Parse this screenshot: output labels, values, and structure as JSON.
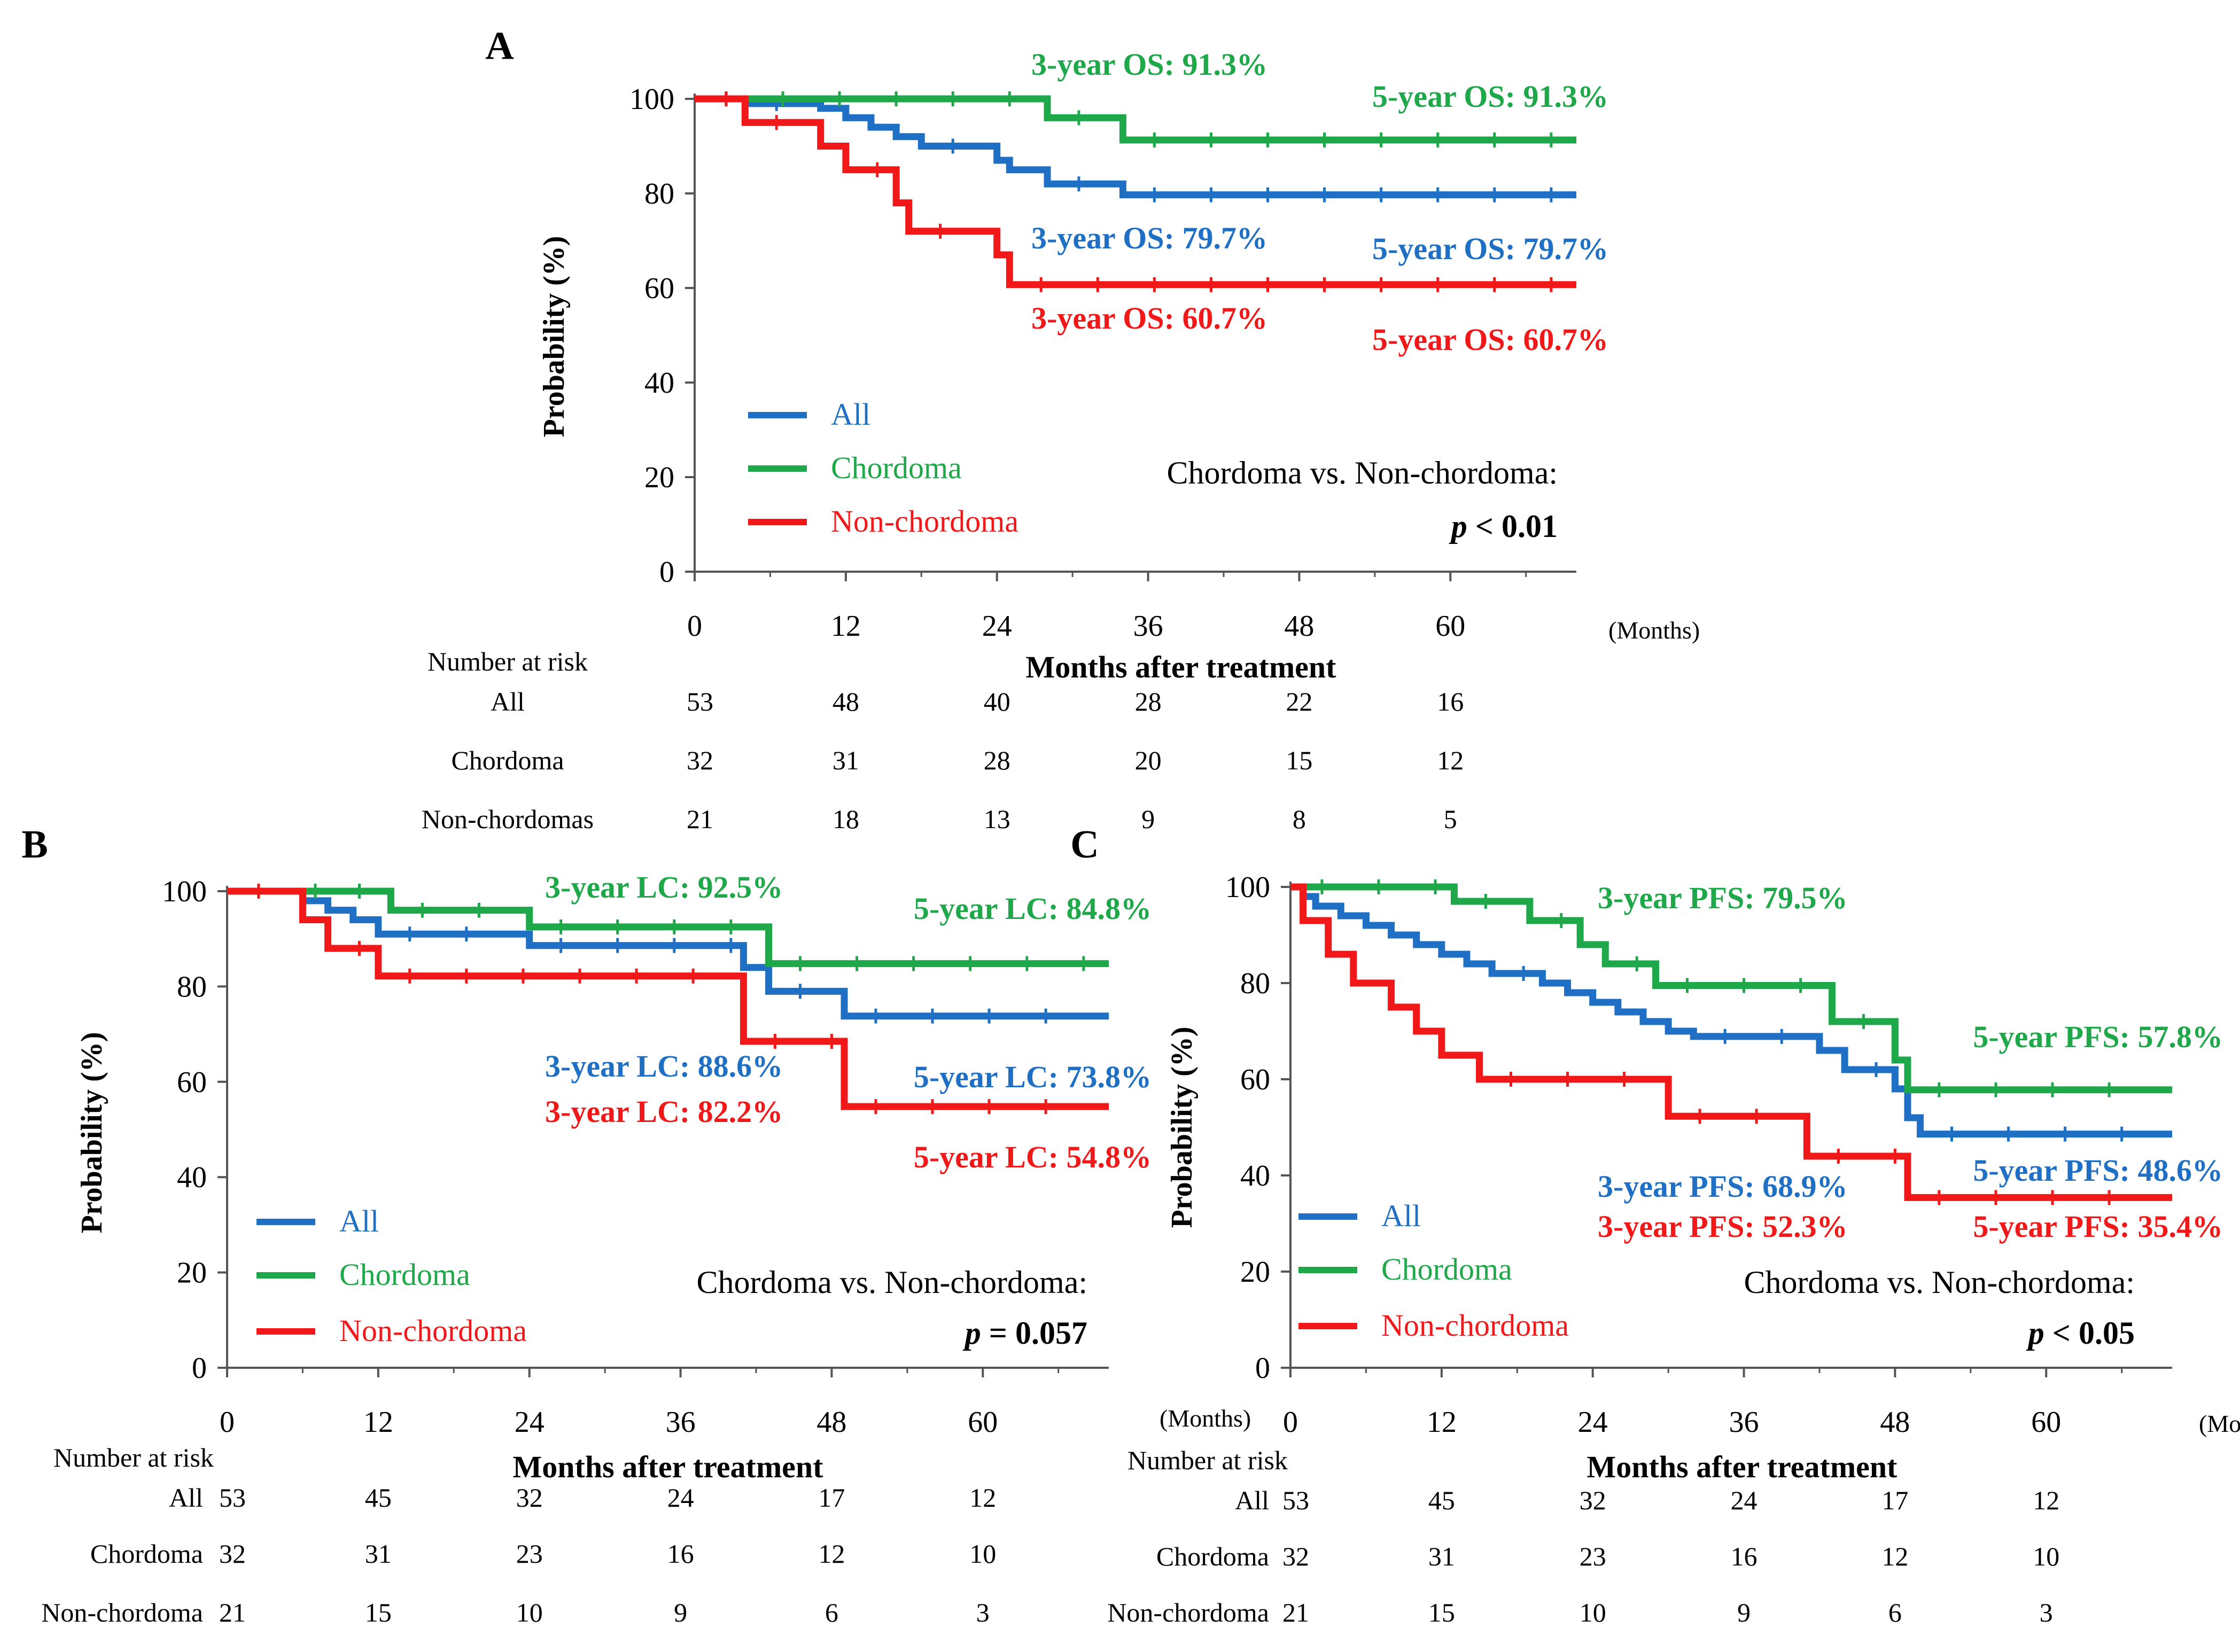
{
  "figure": {
    "time_unit": "(Months)",
    "xlabel": "Months after treatment",
    "ylabel": "Probability (%)",
    "risk_header": "Number at risk",
    "colors": {
      "All": "#1f6fc5",
      "Chordoma": "#1fa84a",
      "Non-chordoma": "#f01818"
    }
  },
  "chart_data": [
    {
      "panel": "A",
      "type": "line",
      "step": true,
      "xlabel": "Months after treatment",
      "ylabel": "Probability (%)",
      "xlim": [
        0,
        70
      ],
      "ylim": [
        0,
        100
      ],
      "xticks": [
        "0",
        "12",
        "24",
        "36",
        "48",
        "60"
      ],
      "yticks": [
        "0",
        "20",
        "40",
        "60",
        "80",
        "100"
      ],
      "grid": false,
      "legend_position": "bottom-left",
      "series": [
        {
          "name": "All",
          "x": [
            0,
            4,
            10,
            12,
            14,
            16,
            18,
            24,
            25,
            28,
            34,
            70
          ],
          "y": [
            100,
            99,
            98,
            96,
            94,
            92,
            90,
            87,
            85,
            82,
            79.7,
            79.7
          ]
        },
        {
          "name": "Chordoma",
          "x": [
            0,
            28,
            34,
            70
          ],
          "y": [
            100,
            96,
            91.3,
            91.3
          ]
        },
        {
          "name": "Non-chordoma",
          "x": [
            0,
            4,
            10,
            12,
            16,
            17,
            24,
            25,
            70
          ],
          "y": [
            100,
            95,
            90,
            85,
            78,
            72,
            67,
            60.7,
            60.7
          ]
        }
      ],
      "annotations": [
        {
          "text": "3-year OS: 91.3%",
          "series": "Chordoma"
        },
        {
          "text": "5-year OS: 91.3%",
          "series": "Chordoma"
        },
        {
          "text": "3-year OS: 79.7%",
          "series": "All"
        },
        {
          "text": "5-year OS: 79.7%",
          "series": "All"
        },
        {
          "text": "3-year OS: 60.7%",
          "series": "Non-chordoma"
        },
        {
          "text": "5-year OS: 60.7%",
          "series": "Non-chordoma"
        }
      ],
      "comparison": "Chordoma vs. Non-chordoma:",
      "p_label": "p",
      "p_value": " < 0.01",
      "risk_table": [
        {
          "label": "All",
          "values": [
            "53",
            "48",
            "40",
            "28",
            "22",
            "16"
          ]
        },
        {
          "label": "Chordoma",
          "values": [
            "32",
            "31",
            "28",
            "20",
            "15",
            "12"
          ]
        },
        {
          "label": "Non-chordomas",
          "values": [
            "21",
            "18",
            "13",
            "9",
            "8",
            "5"
          ]
        }
      ]
    },
    {
      "panel": "B",
      "type": "line",
      "step": true,
      "xlabel": "Months after treatment",
      "ylabel": "Probability (%)",
      "xlim": [
        0,
        70
      ],
      "ylim": [
        0,
        100
      ],
      "xticks": [
        "0",
        "12",
        "24",
        "36",
        "48",
        "60"
      ],
      "yticks": [
        "0",
        "20",
        "40",
        "60",
        "80",
        "100"
      ],
      "grid": false,
      "legend_position": "bottom-left",
      "series": [
        {
          "name": "All",
          "x": [
            0,
            6,
            8,
            10,
            12,
            24,
            41,
            43,
            49,
            70
          ],
          "y": [
            100,
            98,
            96,
            94,
            91,
            88.6,
            84,
            79,
            73.8,
            73.8
          ]
        },
        {
          "name": "Chordoma",
          "x": [
            0,
            8,
            13,
            24,
            43,
            70
          ],
          "y": [
            100,
            100,
            96,
            92.5,
            84.8,
            84.8
          ]
        },
        {
          "name": "Non-chordoma",
          "x": [
            0,
            6,
            8,
            12,
            41,
            49,
            70
          ],
          "y": [
            100,
            94,
            88,
            82.2,
            68.5,
            54.8,
            54.8
          ]
        }
      ],
      "annotations": [
        {
          "text": "3-year LC: 92.5%",
          "series": "Chordoma"
        },
        {
          "text": "5-year LC: 84.8%",
          "series": "Chordoma"
        },
        {
          "text": "3-year LC: 88.6%",
          "series": "All"
        },
        {
          "text": "5-year LC: 73.8%",
          "series": "All"
        },
        {
          "text": "3-year LC: 82.2%",
          "series": "Non-chordoma"
        },
        {
          "text": "5-year LC: 54.8%",
          "series": "Non-chordoma"
        }
      ],
      "comparison": "Chordoma vs. Non-chordoma:",
      "p_label": "p",
      "p_value": " = 0.057",
      "risk_table": [
        {
          "label": "All",
          "values": [
            "53",
            "45",
            "32",
            "24",
            "17",
            "12"
          ]
        },
        {
          "label": "Chordoma",
          "values": [
            "32",
            "31",
            "23",
            "16",
            "12",
            "10"
          ]
        },
        {
          "label": "Non-chordoma",
          "values": [
            "21",
            "15",
            "10",
            "9",
            "6",
            "3"
          ]
        }
      ]
    },
    {
      "panel": "C",
      "type": "line",
      "step": true,
      "xlabel": "Months after treatment",
      "ylabel": "Probability (%)",
      "xlim": [
        0,
        70
      ],
      "ylim": [
        0,
        100
      ],
      "xticks": [
        "0",
        "12",
        "24",
        "36",
        "48",
        "60"
      ],
      "yticks": [
        "0",
        "20",
        "40",
        "60",
        "80",
        "100"
      ],
      "grid": false,
      "legend_position": "bottom-left",
      "series": [
        {
          "name": "All",
          "x": [
            0,
            1,
            2,
            4,
            6,
            8,
            10,
            12,
            14,
            16,
            20,
            22,
            24,
            26,
            28,
            30,
            32,
            42,
            44,
            48,
            49,
            50,
            70
          ],
          "y": [
            100,
            98,
            96,
            94,
            92,
            90,
            88,
            86,
            84,
            82,
            80,
            78,
            76,
            74,
            72,
            70,
            68.9,
            66,
            62,
            58,
            52,
            48.6,
            48.6
          ]
        },
        {
          "name": "Chordoma",
          "x": [
            0,
            13,
            19,
            23,
            25,
            29,
            43,
            48,
            49,
            70
          ],
          "y": [
            100,
            97,
            93,
            88,
            84,
            79.5,
            72,
            64,
            57.8,
            57.8
          ]
        },
        {
          "name": "Non-chordoma",
          "x": [
            0,
            1,
            3,
            5,
            8,
            10,
            12,
            15,
            30,
            41,
            49,
            70
          ],
          "y": [
            100,
            93,
            86,
            80,
            75,
            70,
            65,
            60,
            52.3,
            44,
            35.4,
            35.4
          ]
        }
      ],
      "annotations": [
        {
          "text": "3-year PFS: 79.5%",
          "series": "Chordoma"
        },
        {
          "text": "5-year PFS: 57.8%",
          "series": "Chordoma"
        },
        {
          "text": "3-year PFS: 68.9%",
          "series": "All"
        },
        {
          "text": "5-year PFS: 48.6%",
          "series": "All"
        },
        {
          "text": "3-year PFS: 52.3%",
          "series": "Non-chordoma"
        },
        {
          "text": "5-year PFS: 35.4%",
          "series": "Non-chordoma"
        }
      ],
      "comparison": "Chordoma vs. Non-chordoma:",
      "p_label": "p",
      "p_value": " < 0.05",
      "risk_table": [
        {
          "label": "All",
          "values": [
            "53",
            "45",
            "32",
            "24",
            "17",
            "12"
          ]
        },
        {
          "label": "Chordoma",
          "values": [
            "32",
            "31",
            "23",
            "16",
            "12",
            "10"
          ]
        },
        {
          "label": "Non-chordoma",
          "values": [
            "21",
            "15",
            "10",
            "9",
            "6",
            "3"
          ]
        }
      ]
    }
  ]
}
